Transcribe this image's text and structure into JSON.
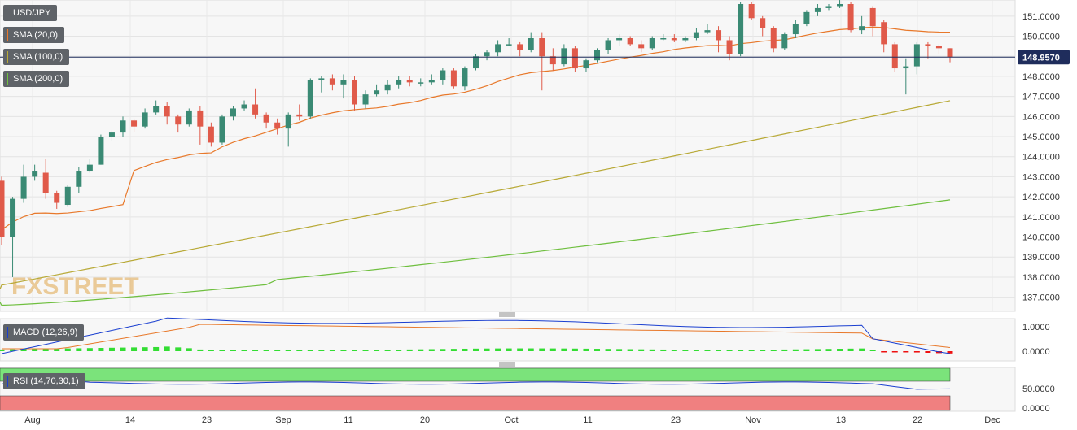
{
  "chart_data": {
    "type": "candlestick",
    "symbol": "USD/JPY",
    "watermark": "FXSTREET",
    "last_price_label": "148.9570",
    "x_labels": [
      "Aug",
      "14",
      "23",
      "Sep",
      "11",
      "20",
      "Oct",
      "11",
      "23",
      "Nov",
      "13",
      "22",
      "Dec"
    ],
    "price_ticks": [
      "137.0000",
      "138.0000",
      "139.0000",
      "140.0000",
      "141.0000",
      "142.0000",
      "143.0000",
      "144.0000",
      "145.0000",
      "146.0000",
      "147.0000",
      "148.0000",
      "149.0000",
      "150.0000",
      "151.0000"
    ],
    "price_range": [
      136.5,
      151.6
    ],
    "legend": [
      {
        "label": "USD/JPY",
        "color": "#5f6368"
      },
      {
        "label": "SMA (20,0)",
        "color": "#e8782a"
      },
      {
        "label": "SMA (100,0)",
        "color": "#b8a936"
      },
      {
        "label": "SMA (200,0)",
        "color": "#6fbf3f"
      }
    ],
    "colors": {
      "up": "#3a8a74",
      "down": "#e05a4a",
      "sma20": "#e8782a",
      "sma100": "#b8a936",
      "sma200": "#6fbf3f",
      "last_line": "#1f2d5c",
      "macd": "#1a3fd0",
      "signal": "#e8782a",
      "hist_pos": "#33dd33",
      "hist_neg": "#ee1111",
      "rsi_line": "#1a3fd0",
      "rsi_upper": "#7be37b",
      "rsi_lower": "#f08080"
    },
    "candles": [
      [
        142.8,
        140.0,
        143.0,
        139.6
      ],
      [
        140.0,
        141.9,
        142.0,
        138.0
      ],
      [
        141.9,
        143.0,
        143.6,
        141.7
      ],
      [
        143.0,
        143.3,
        143.6,
        142.8
      ],
      [
        143.2,
        142.2,
        143.9,
        141.9
      ],
      [
        142.2,
        141.7,
        142.3,
        141.4
      ],
      [
        141.6,
        142.5,
        142.6,
        141.5
      ],
      [
        142.5,
        143.3,
        143.5,
        142.2
      ],
      [
        143.3,
        143.6,
        143.9,
        143.2
      ],
      [
        143.6,
        145.0,
        145.1,
        143.6
      ],
      [
        145.0,
        145.2,
        145.3,
        144.8
      ],
      [
        145.2,
        145.8,
        146.0,
        145.0
      ],
      [
        145.8,
        145.5,
        145.9,
        145.2
      ],
      [
        145.5,
        146.2,
        146.4,
        145.4
      ],
      [
        146.2,
        146.5,
        146.8,
        146.1
      ],
      [
        146.5,
        146.0,
        146.7,
        145.6
      ],
      [
        146.0,
        145.6,
        146.1,
        145.2
      ],
      [
        145.6,
        146.3,
        146.4,
        145.5
      ],
      [
        146.3,
        145.5,
        146.5,
        144.6
      ],
      [
        145.5,
        144.7,
        145.7,
        144.5
      ],
      [
        144.7,
        146.0,
        146.1,
        144.6
      ],
      [
        146.0,
        146.4,
        146.5,
        145.8
      ],
      [
        146.4,
        146.6,
        146.8,
        146.3
      ],
      [
        146.6,
        146.1,
        147.4,
        145.9
      ],
      [
        146.1,
        145.7,
        146.2,
        145.4
      ],
      [
        145.7,
        145.4,
        145.9,
        145.1
      ],
      [
        145.4,
        146.1,
        146.2,
        144.5
      ],
      [
        146.1,
        146.0,
        146.6,
        145.8
      ],
      [
        146.0,
        147.8,
        147.9,
        145.9
      ],
      [
        147.8,
        147.9,
        148.0,
        147.2
      ],
      [
        147.9,
        147.6,
        148.1,
        147.3
      ],
      [
        147.6,
        147.8,
        148.1,
        146.9
      ],
      [
        147.8,
        146.6,
        148.0,
        146.3
      ],
      [
        146.6,
        147.1,
        147.3,
        146.4
      ],
      [
        147.1,
        147.3,
        147.6,
        147.0
      ],
      [
        147.3,
        147.6,
        147.8,
        147.1
      ],
      [
        147.6,
        147.8,
        148.0,
        147.4
      ],
      [
        147.8,
        147.7,
        148.0,
        147.5
      ],
      [
        147.7,
        147.7,
        147.9,
        147.5
      ],
      [
        147.7,
        147.8,
        148.1,
        147.6
      ],
      [
        147.8,
        148.3,
        148.4,
        147.6
      ],
      [
        148.3,
        147.5,
        148.4,
        147.4
      ],
      [
        147.5,
        148.4,
        148.5,
        147.3
      ],
      [
        148.4,
        149.0,
        149.1,
        148.3
      ],
      [
        149.0,
        149.2,
        149.3,
        148.8
      ],
      [
        149.2,
        149.6,
        149.8,
        149.0
      ],
      [
        149.6,
        149.6,
        149.9,
        149.5
      ],
      [
        149.6,
        149.3,
        149.7,
        149.0
      ],
      [
        149.3,
        149.9,
        150.2,
        149.2
      ],
      [
        149.9,
        149.0,
        150.2,
        147.3
      ],
      [
        149.0,
        148.6,
        149.4,
        148.3
      ],
      [
        148.6,
        149.4,
        149.6,
        148.5
      ],
      [
        149.4,
        148.4,
        149.5,
        148.2
      ],
      [
        148.4,
        148.8,
        148.9,
        148.2
      ],
      [
        148.8,
        149.3,
        149.4,
        148.7
      ],
      [
        149.3,
        149.8,
        149.9,
        149.1
      ],
      [
        149.8,
        149.9,
        150.1,
        149.5
      ],
      [
        149.9,
        149.6,
        150.0,
        149.5
      ],
      [
        149.6,
        149.4,
        149.8,
        149.2
      ],
      [
        149.4,
        149.9,
        150.0,
        149.3
      ],
      [
        149.9,
        149.9,
        150.1,
        149.8
      ],
      [
        149.9,
        149.8,
        150.1,
        149.7
      ],
      [
        149.8,
        149.9,
        150.0,
        149.7
      ],
      [
        149.9,
        150.2,
        150.4,
        149.8
      ],
      [
        150.2,
        150.3,
        150.6,
        150.1
      ],
      [
        150.3,
        149.8,
        150.5,
        149.2
      ],
      [
        149.8,
        149.1,
        150.0,
        148.8
      ],
      [
        149.1,
        151.6,
        151.7,
        149.0
      ],
      [
        151.6,
        150.9,
        151.7,
        150.8
      ],
      [
        150.9,
        150.4,
        151.0,
        150.0
      ],
      [
        150.4,
        149.4,
        150.5,
        149.2
      ],
      [
        149.4,
        150.1,
        150.2,
        149.3
      ],
      [
        150.1,
        150.6,
        150.8,
        149.9
      ],
      [
        150.6,
        151.2,
        151.3,
        150.5
      ],
      [
        151.2,
        151.4,
        151.6,
        151.0
      ],
      [
        151.4,
        151.5,
        151.6,
        151.3
      ],
      [
        151.5,
        151.6,
        151.8,
        151.4
      ],
      [
        151.6,
        150.3,
        151.7,
        150.2
      ],
      [
        150.3,
        150.5,
        151.0,
        150.1
      ],
      [
        151.4,
        150.5,
        151.5,
        150.0
      ],
      [
        150.7,
        149.6,
        150.8,
        149.2
      ],
      [
        149.6,
        148.4,
        149.7,
        148.2
      ],
      [
        148.4,
        148.5,
        148.9,
        147.1
      ],
      [
        148.5,
        149.6,
        149.7,
        148.1
      ],
      [
        149.6,
        149.5,
        149.7,
        148.9
      ],
      [
        149.5,
        149.4,
        149.6,
        149.1
      ],
      [
        149.4,
        148.96,
        149.4,
        148.7
      ]
    ],
    "macd_ticks": [
      "1.0000",
      "0.0000"
    ],
    "rsi_ticks": [
      "50.0000",
      "0.0000"
    ],
    "panel_labels": [
      "MACD (12,26,9)",
      "RSI (14,70,30,1)"
    ]
  }
}
